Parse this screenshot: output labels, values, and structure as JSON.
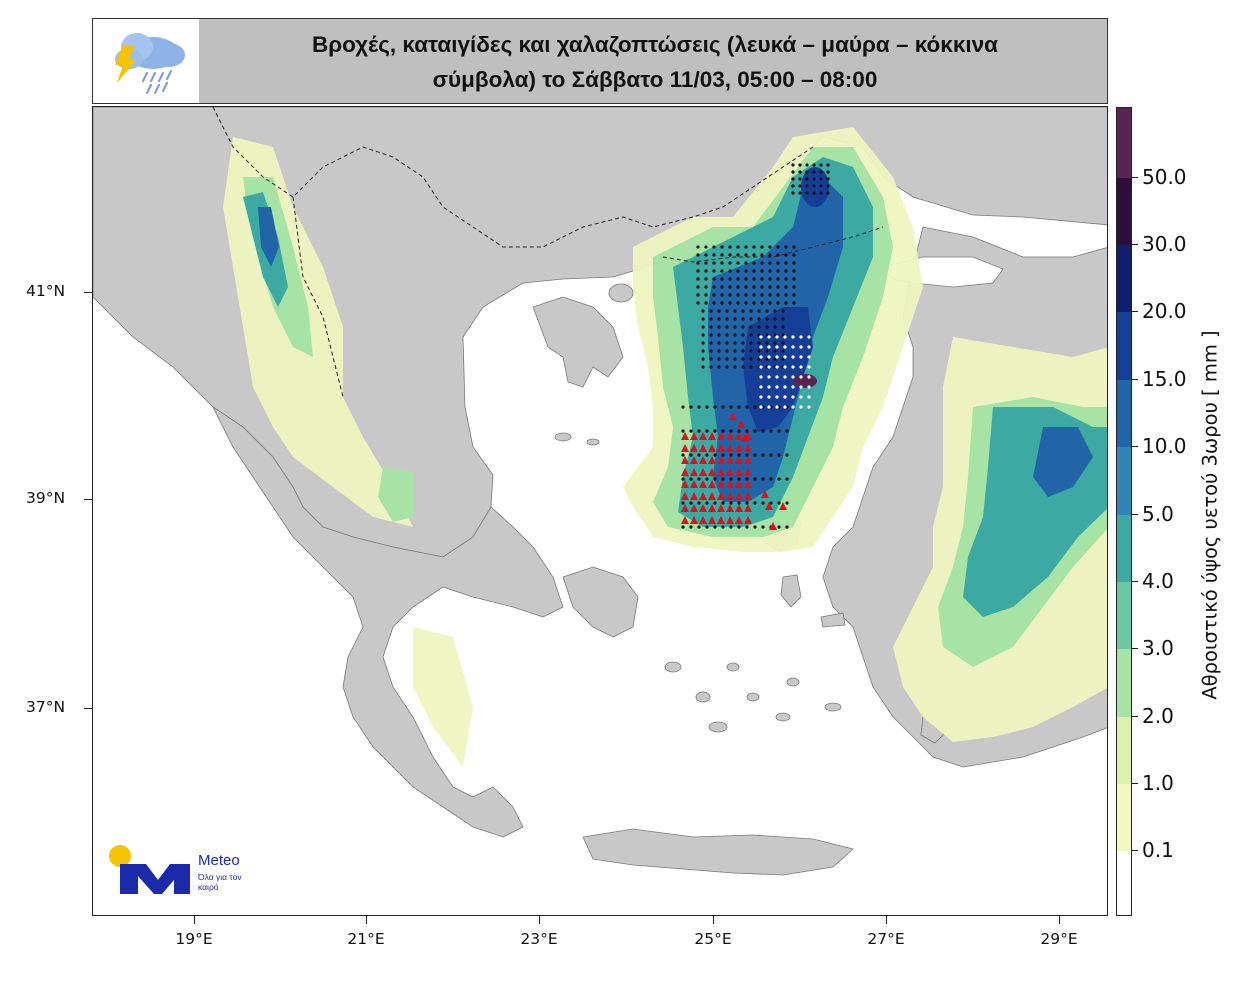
{
  "title": {
    "line1": "Βροχές, καταιγίδες και χαλαζοπτώσεις (λευκά – μαύρα – κόκκινα",
    "line2": "σύμβολα) το Σάββατο 11/03, 05:00 – 08:00"
  },
  "map": {
    "lat_labels": [
      "41°N",
      "39°N",
      "37°N"
    ],
    "lon_labels": [
      "19°E",
      "21°E",
      "23°E",
      "25°E",
      "27°E",
      "29°E"
    ],
    "extent": {
      "lon": [
        17.8,
        29.5
      ],
      "lat": [
        35.0,
        42.8
      ]
    }
  },
  "colorbar": {
    "title": "Αθροιστικό ύψος υετού 3ωρου [ mm ]",
    "levels": [
      "0.1",
      "1.0",
      "2.0",
      "3.0",
      "4.0",
      "5.0",
      "10.0",
      "15.0",
      "20.0",
      "30.0",
      "50.0"
    ],
    "colors": [
      "#ffffff",
      "#f2f7c6",
      "#dcf0b0",
      "#a8e3a6",
      "#6cc8a0",
      "#3ca9a2",
      "#2f86b5",
      "#2165a8",
      "#153f96",
      "#0f1f6e",
      "#2a0f3b",
      "#5a2450"
    ]
  },
  "logo": {
    "name": "Meteo",
    "tagline": "Όλα για τον καιρό",
    "icon": "cloud-lightning-rain-icon",
    "brand_color": "#1b2aa8",
    "sun_color": "#f5c400"
  },
  "symbols": {
    "white_dot": "#ffffff",
    "black_dot": "#111111",
    "red_triangle": "#e0101a"
  }
}
